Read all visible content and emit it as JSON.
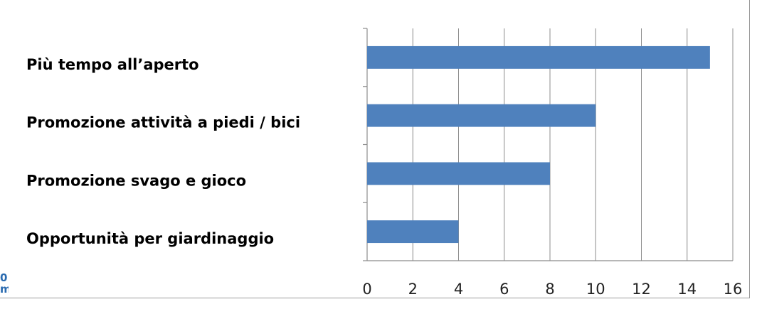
{
  "chart_data": {
    "type": "bar",
    "orientation": "horizontal",
    "title": "",
    "xlabel": "",
    "ylabel": "",
    "categories": [
      "Più tempo all’aperto",
      "Promozione attività a piedi / bici",
      "Promozione svago e gioco",
      "Opportunità per giardinaggio"
    ],
    "values": [
      15,
      10,
      8,
      4
    ],
    "xlim": [
      0,
      16
    ],
    "xticks": [
      0,
      2,
      4,
      6,
      8,
      10,
      12,
      14,
      16
    ],
    "grid": true,
    "legend": "none",
    "bar_color": "#4f81bd",
    "grid_color": "#8c8c8c"
  },
  "edge_fragment": {
    "lines": [
      "0",
      "m"
    ],
    "color": "#2a6bb0"
  }
}
